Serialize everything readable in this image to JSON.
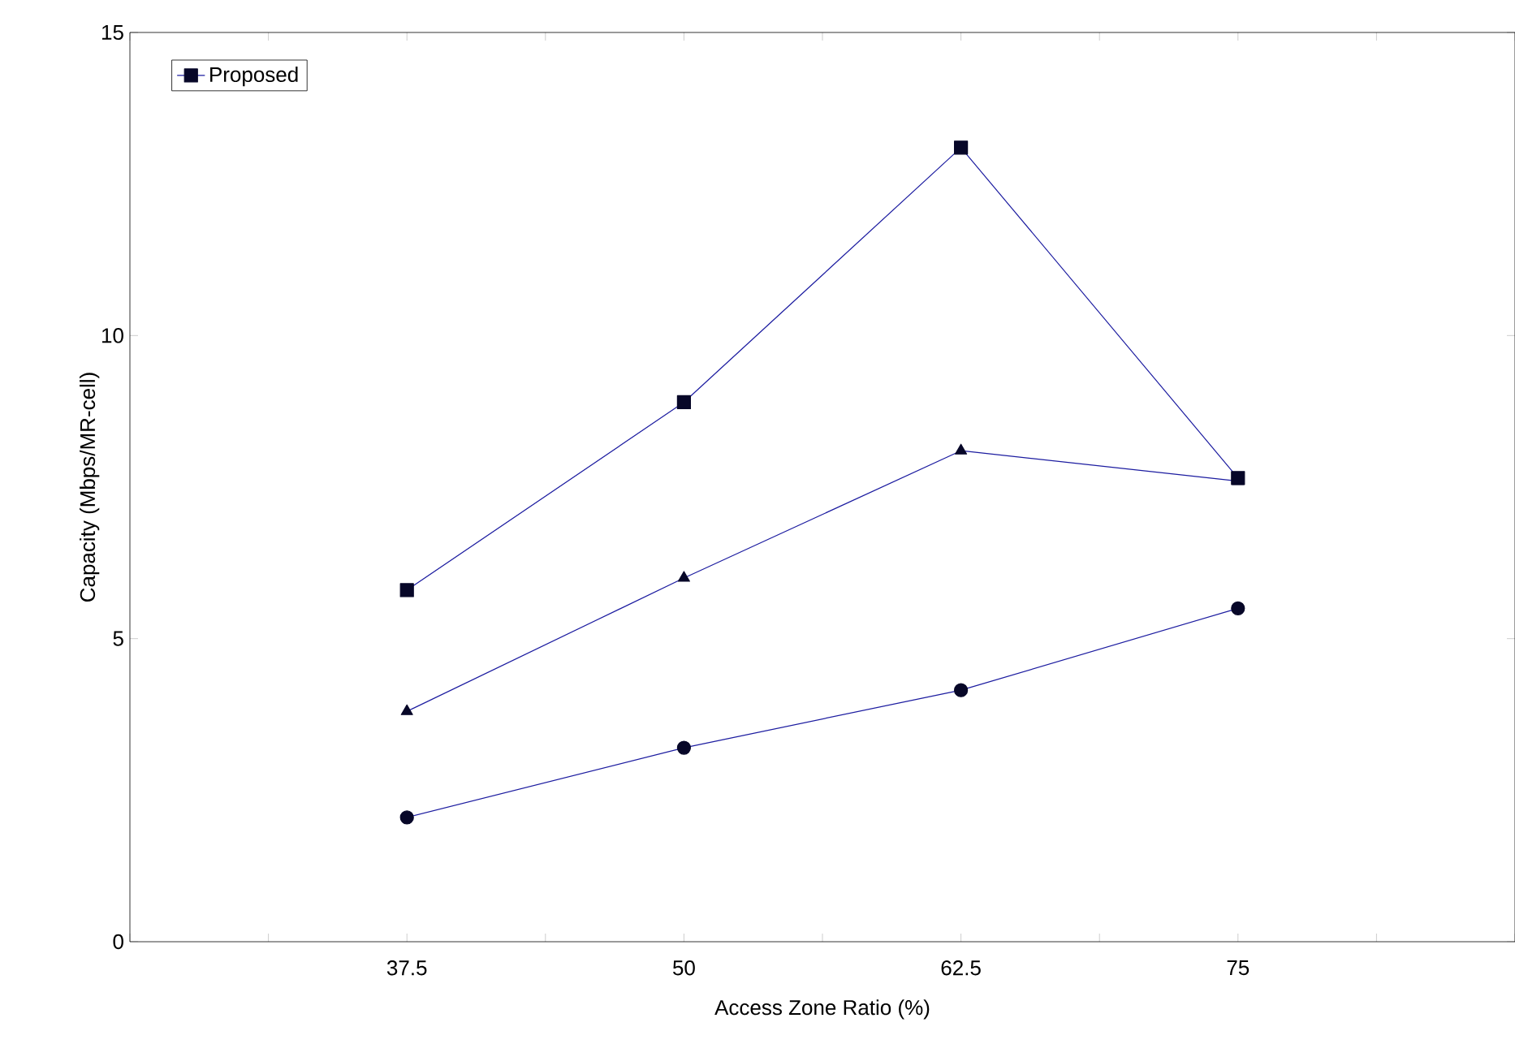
{
  "chart_data": {
    "type": "line",
    "xlabel": "Access Zone Ratio (%)",
    "ylabel": "Capacity (Mbps/MR-cell)",
    "x": [
      37.5,
      50,
      62.5,
      75
    ],
    "series": [
      {
        "color": "#1c1ca0",
        "marker": "circle",
        "values": [
          2.05,
          3.2,
          4.15,
          5.5
        ]
      },
      {
        "color": "#1c1ca0",
        "marker": "triangle",
        "values": [
          3.8,
          6.0,
          8.1,
          7.6
        ]
      },
      {
        "name": "Proposed",
        "color": "#1c1ca0",
        "marker": "square",
        "values": [
          5.8,
          8.9,
          13.1,
          7.65
        ]
      }
    ],
    "xlim": [
      25,
      87.5
    ],
    "ylim": [
      0,
      15
    ],
    "xticks": [
      {
        "value": 25,
        "label": null
      },
      {
        "value": 31.25,
        "label": null
      },
      37.5,
      {
        "value": 43.75,
        "label": null
      },
      50,
      {
        "value": 56.25,
        "label": null
      },
      62.5,
      {
        "value": 68.75,
        "label": null
      },
      75,
      {
        "value": 81.25,
        "label": null
      },
      {
        "value": 87.5,
        "label": null
      }
    ],
    "yticks": [
      0,
      5,
      10,
      15
    ],
    "legend": "top left",
    "line_style": "solid",
    "grid": false
  }
}
